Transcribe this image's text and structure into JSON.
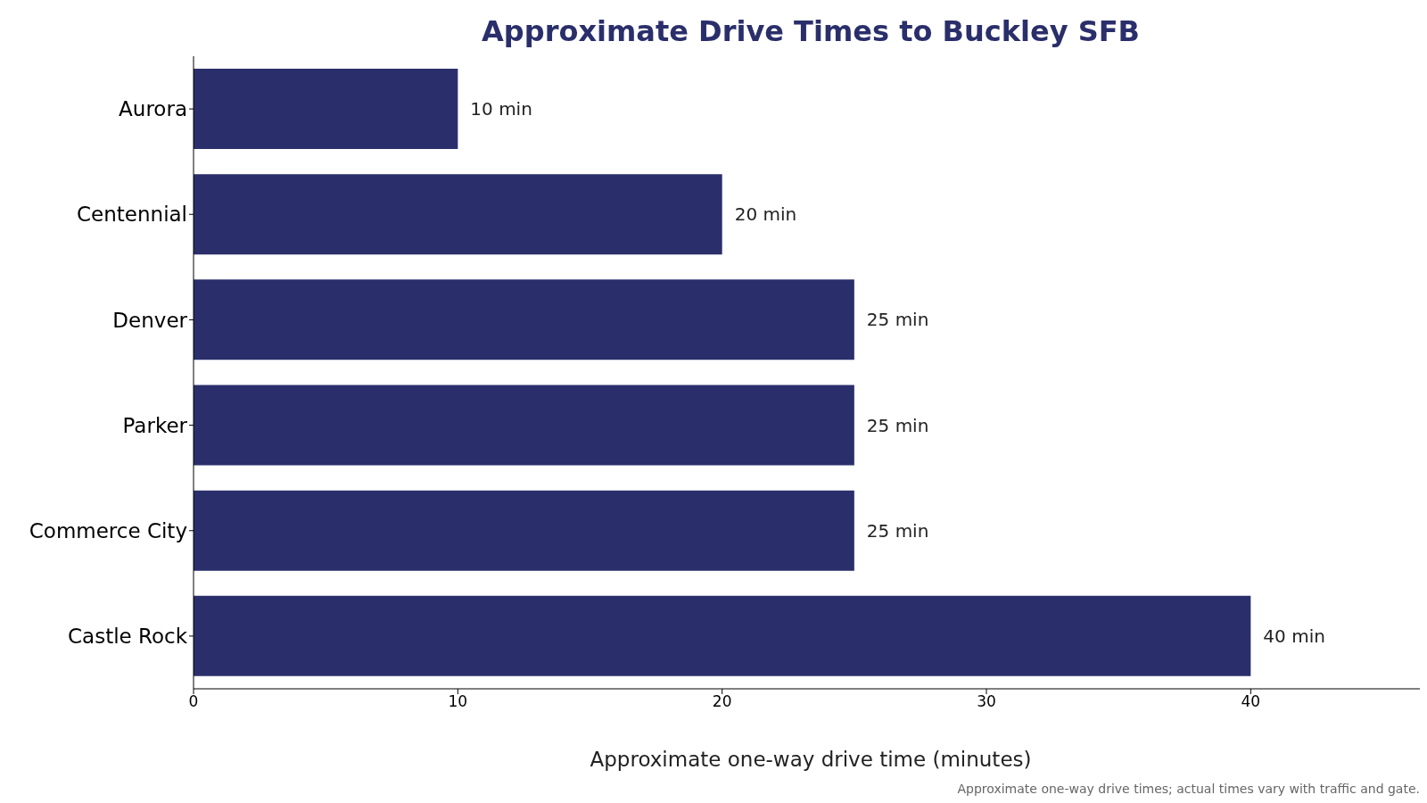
{
  "chart_data": {
    "type": "bar",
    "orientation": "horizontal",
    "title": "Approximate Drive Times to Buckley SFB",
    "categories": [
      "Aurora",
      "Centennial",
      "Denver",
      "Parker",
      "Commerce City",
      "Castle Rock"
    ],
    "values": [
      10,
      20,
      25,
      25,
      25,
      40
    ],
    "value_labels": [
      "10 min",
      "20 min",
      "25 min",
      "25 min",
      "25 min",
      "40 min"
    ],
    "color": "#2a2f6b",
    "xlabel": "Approximate one-way drive time (minutes)",
    "xlim": [
      0,
      46.4
    ],
    "xticks": [
      0,
      10,
      20,
      30,
      40
    ],
    "grid": false,
    "legend": false,
    "annotations": [
      "Approximate one-way drive times; actual times vary with traffic and gate."
    ]
  }
}
